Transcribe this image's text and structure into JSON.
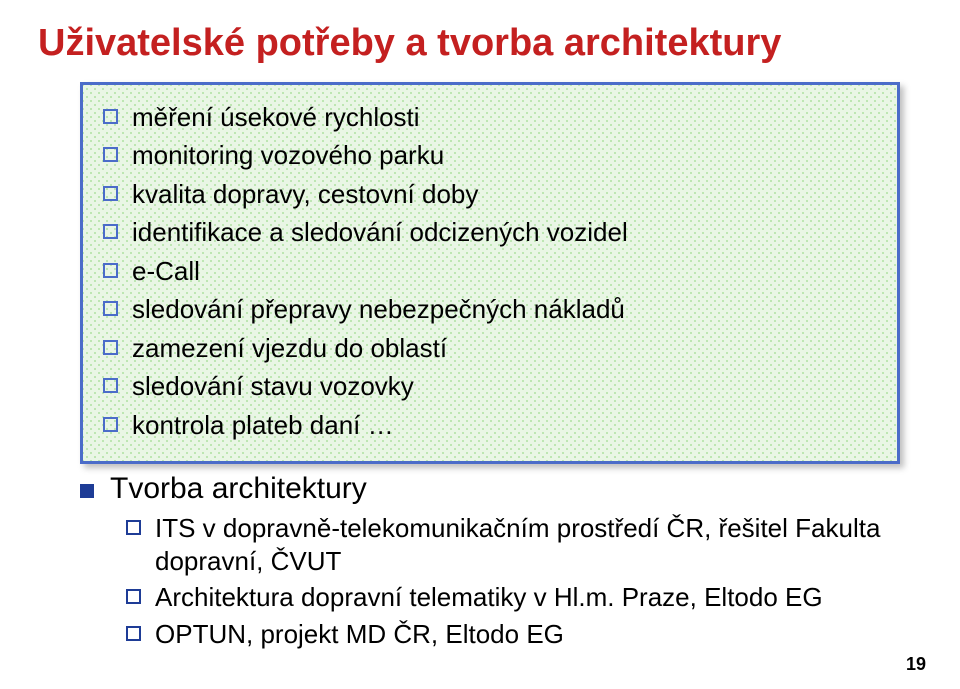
{
  "colors": {
    "title": "#c42020",
    "box_border": "#4b6cc9",
    "box_bg": "#e9f6e5",
    "box_dot": "#aee0a1",
    "box_bullet": "#4b6cc9",
    "lvl1_bullet": "#1e3c96",
    "lvl2_bullet": "#1e3c96",
    "text": "#000000"
  },
  "title": "Uživatelské potřeby a tvorba architektury",
  "box_items": [
    "měření úsekové rychlosti",
    "monitoring vozového parku",
    "kvalita dopravy, cestovní doby",
    "identifikace a sledování odcizených vozidel",
    "e-Call",
    "sledování přepravy nebezpečných nákladů",
    "zamezení vjezdu do oblastí",
    "sledování stavu vozovky",
    "kontrola plateb daní …"
  ],
  "section": {
    "heading": "Tvorba architektury",
    "items": [
      "ITS  v dopravně-telekomunikačním prostředí ČR, řešitel Fakulta dopravní, ČVUT",
      "Architektura dopravní telematiky v Hl.m. Praze, Eltodo EG",
      "OPTUN, projekt MD ČR, Eltodo EG"
    ]
  },
  "page_number": "19"
}
